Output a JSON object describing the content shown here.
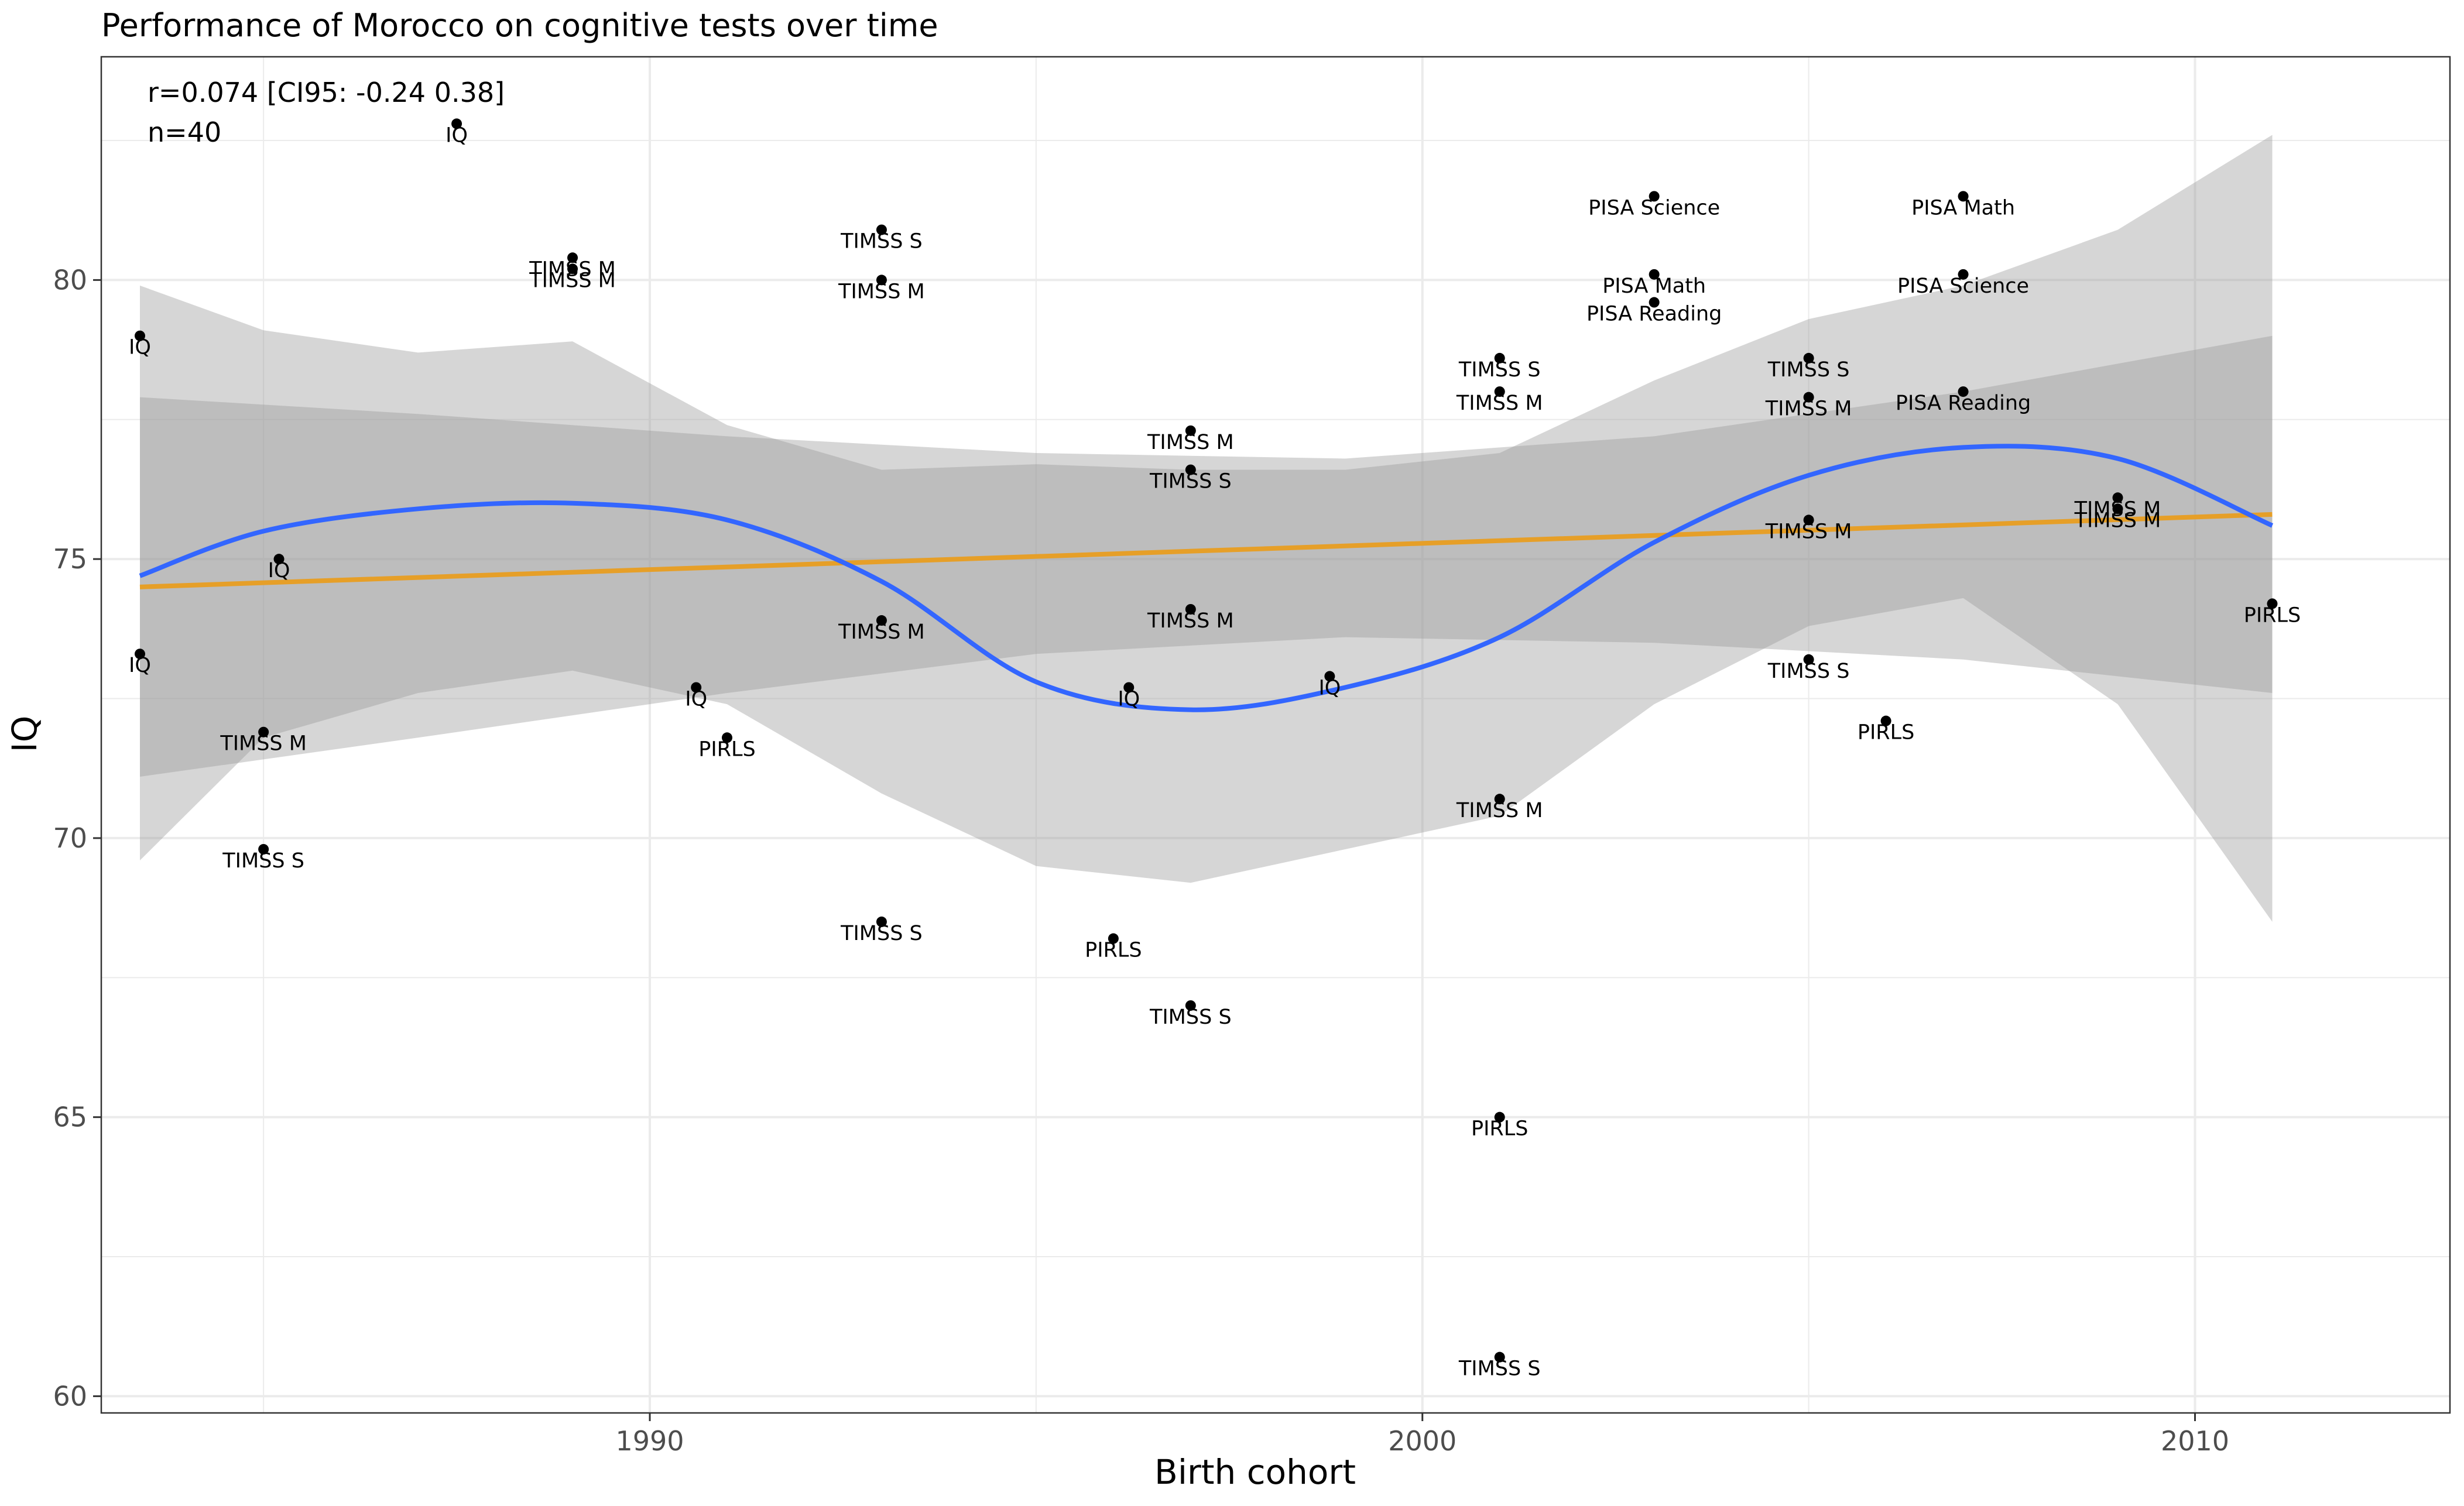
{
  "chart_data": {
    "type": "scatter",
    "title": "Performance of Morocco on cognitive tests over time",
    "annotation": [
      "r=0.074 [CI95: -0.24 0.38]",
      "n=40"
    ],
    "xlabel": "Birth cohort",
    "ylabel": "IQ",
    "xlim": [
      1982.9,
      2013.3
    ],
    "ylim": [
      59.7,
      84.0
    ],
    "x_ticks": [
      1990,
      2000,
      2010
    ],
    "y_ticks": [
      60,
      65,
      70,
      75,
      80
    ],
    "grid": true,
    "points": [
      {
        "x": 1983.4,
        "y": 79.0,
        "label": "IQ"
      },
      {
        "x": 1983.4,
        "y": 73.3,
        "label": "IQ"
      },
      {
        "x": 1985.2,
        "y": 75.0,
        "label": "IQ"
      },
      {
        "x": 1987.5,
        "y": 82.8,
        "label": "IQ"
      },
      {
        "x": 1990.6,
        "y": 72.7,
        "label": "IQ"
      },
      {
        "x": 1996.2,
        "y": 72.7,
        "label": "IQ"
      },
      {
        "x": 1998.8,
        "y": 72.9,
        "label": "IQ"
      },
      {
        "x": 1985.0,
        "y": 71.9,
        "label": "TIMSS M"
      },
      {
        "x": 1985.0,
        "y": 69.8,
        "label": "TIMSS S"
      },
      {
        "x": 1989.0,
        "y": 80.4,
        "label": "TIMSS M"
      },
      {
        "x": 1989.0,
        "y": 80.2,
        "label": "TIMSS M"
      },
      {
        "x": 1991.0,
        "y": 71.8,
        "label": "PIRLS"
      },
      {
        "x": 1993.0,
        "y": 80.9,
        "label": "TIMSS S"
      },
      {
        "x": 1993.0,
        "y": 80.0,
        "label": "TIMSS M"
      },
      {
        "x": 1993.0,
        "y": 73.9,
        "label": "TIMSS M"
      },
      {
        "x": 1993.0,
        "y": 68.5,
        "label": "TIMSS S"
      },
      {
        "x": 1996.0,
        "y": 68.2,
        "label": "PIRLS"
      },
      {
        "x": 1997.0,
        "y": 77.3,
        "label": "TIMSS M"
      },
      {
        "x": 1997.0,
        "y": 76.6,
        "label": "TIMSS S"
      },
      {
        "x": 1997.0,
        "y": 74.1,
        "label": "TIMSS M"
      },
      {
        "x": 1997.0,
        "y": 67.0,
        "label": "TIMSS S"
      },
      {
        "x": 2001.0,
        "y": 78.6,
        "label": "TIMSS S"
      },
      {
        "x": 2001.0,
        "y": 78.0,
        "label": "TIMSS M"
      },
      {
        "x": 2001.0,
        "y": 70.7,
        "label": "TIMSS M"
      },
      {
        "x": 2001.0,
        "y": 65.0,
        "label": "PIRLS"
      },
      {
        "x": 2001.0,
        "y": 60.7,
        "label": "TIMSS S"
      },
      {
        "x": 2003.0,
        "y": 81.5,
        "label": "PISA Science"
      },
      {
        "x": 2003.0,
        "y": 80.1,
        "label": "PISA Math"
      },
      {
        "x": 2003.0,
        "y": 79.6,
        "label": "PISA Reading"
      },
      {
        "x": 2005.0,
        "y": 78.6,
        "label": "TIMSS S"
      },
      {
        "x": 2005.0,
        "y": 77.9,
        "label": "TIMSS M"
      },
      {
        "x": 2005.0,
        "y": 75.7,
        "label": "TIMSS M"
      },
      {
        "x": 2005.0,
        "y": 73.2,
        "label": "TIMSS S"
      },
      {
        "x": 2006.0,
        "y": 72.1,
        "label": "PIRLS"
      },
      {
        "x": 2007.0,
        "y": 81.5,
        "label": "PISA Math"
      },
      {
        "x": 2007.0,
        "y": 80.1,
        "label": "PISA Science"
      },
      {
        "x": 2007.0,
        "y": 78.0,
        "label": "PISA Reading"
      },
      {
        "x": 2009.0,
        "y": 76.1,
        "label": "TIMSS M"
      },
      {
        "x": 2009.0,
        "y": 75.9,
        "label": "TIMSS M"
      },
      {
        "x": 2011.0,
        "y": 74.2,
        "label": "PIRLS"
      }
    ],
    "linear_fit": {
      "color": "#E69F28",
      "x": [
        1983.4,
        2011.0
      ],
      "y": [
        74.5,
        75.8
      ],
      "ci_x": [
        1983.4,
        1987,
        1991,
        1995,
        1999,
        2003,
        2007,
        2011.0
      ],
      "ci_low": [
        71.1,
        71.8,
        72.6,
        73.3,
        73.6,
        73.5,
        73.2,
        72.6
      ],
      "ci_high": [
        77.9,
        77.6,
        77.2,
        76.9,
        76.8,
        77.2,
        78.0,
        79.0
      ]
    },
    "smooth_fit": {
      "color": "#3366FF",
      "x": [
        1983.4,
        1985,
        1987,
        1989,
        1991,
        1993,
        1995,
        1997,
        1999,
        2001,
        2003,
        2005,
        2007,
        2009,
        2011.0
      ],
      "y": [
        74.7,
        75.5,
        75.9,
        76.0,
        75.7,
        74.6,
        72.8,
        72.3,
        72.7,
        73.6,
        75.3,
        76.5,
        77.0,
        76.8,
        75.6
      ],
      "ci_low": [
        69.6,
        71.8,
        72.6,
        73.0,
        72.4,
        70.8,
        69.5,
        69.2,
        69.8,
        70.4,
        72.4,
        73.8,
        74.3,
        72.4,
        68.5
      ],
      "ci_high": [
        79.9,
        79.1,
        78.7,
        78.9,
        77.4,
        76.6,
        76.7,
        76.6,
        76.6,
        76.9,
        78.2,
        79.3,
        79.9,
        80.9,
        82.6
      ]
    }
  }
}
